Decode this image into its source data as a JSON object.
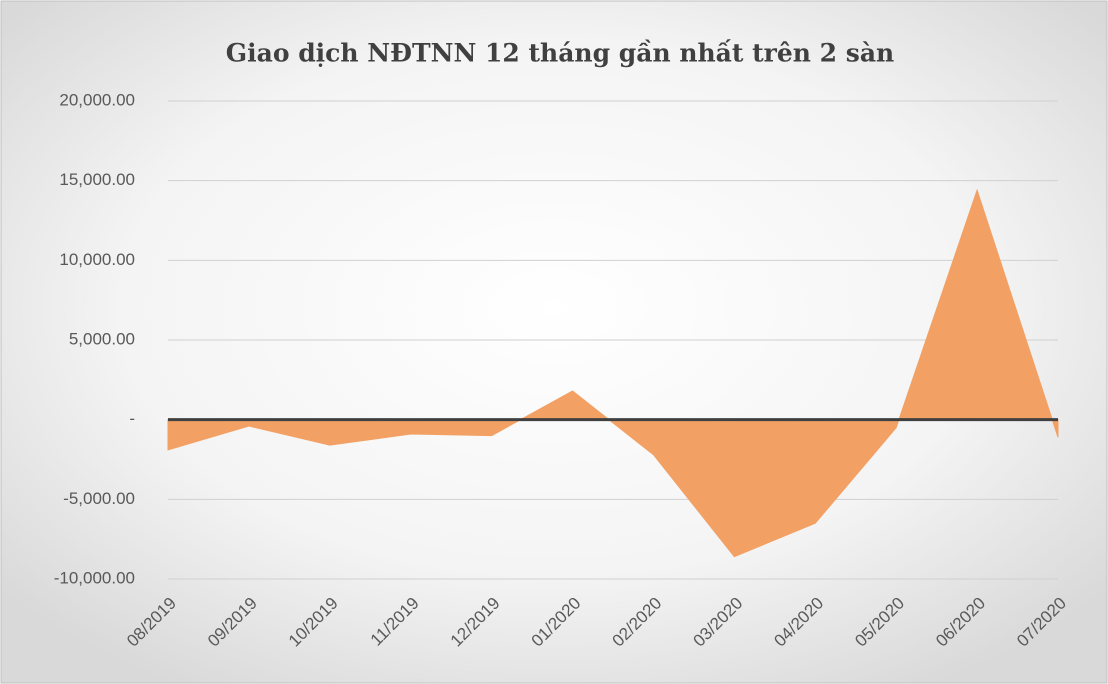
{
  "chart_data": {
    "type": "area",
    "title": "Giao dịch NĐTNN 12 tháng gần nhất trên 2 sàn",
    "categories": [
      "08/2019",
      "09/2019",
      "10/2019",
      "11/2019",
      "12/2019",
      "01/2020",
      "02/2020",
      "03/2020",
      "04/2020",
      "05/2020",
      "06/2020",
      "07/2020"
    ],
    "values": [
      -1900,
      -400,
      -1600,
      -900,
      -1000,
      1800,
      -2200,
      -8600,
      -6500,
      -500,
      14400,
      -1100
    ],
    "color": "#f2a064",
    "ylim": [
      -10000,
      20000
    ],
    "yticks": [
      {
        "value": -10000,
        "label": "-10,000.00"
      },
      {
        "value": -5000,
        "label": "-5,000.00"
      },
      {
        "value": 0,
        "label": "-"
      },
      {
        "value": 5000,
        "label": "5,000.00"
      },
      {
        "value": 10000,
        "label": "10,000.00"
      },
      {
        "value": 15000,
        "label": "15,000.00"
      },
      {
        "value": 20000,
        "label": "20,000.00"
      }
    ],
    "grid": true
  }
}
